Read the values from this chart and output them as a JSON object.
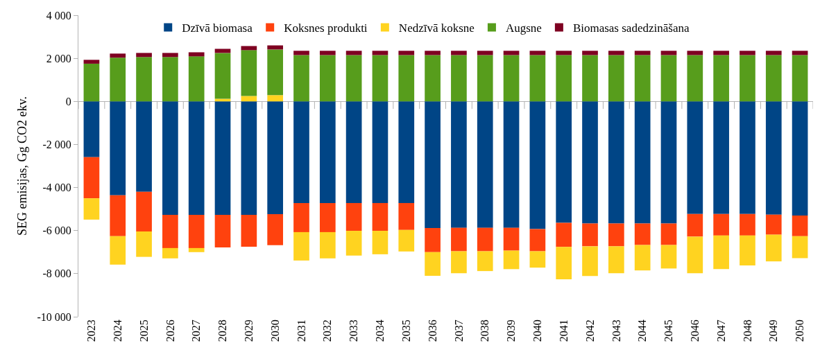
{
  "chart_data": {
    "type": "bar",
    "stacked": true,
    "ylabel": "SEG emisijas, Gg CO2 ekv.",
    "categories": [
      "2023",
      "2024",
      "2025",
      "2026",
      "2027",
      "2028",
      "2029",
      "2030",
      "2031",
      "2032",
      "2033",
      "2034",
      "2035",
      "2036",
      "2037",
      "2038",
      "2039",
      "2040",
      "2041",
      "2042",
      "2043",
      "2044",
      "2045",
      "2046",
      "2047",
      "2048",
      "2049",
      "2050"
    ],
    "series": [
      {
        "name": "Dzīvā biomasa",
        "color": "#004586",
        "values": [
          -2590,
          -4360,
          -4200,
          -5270,
          -5270,
          -5270,
          -5270,
          -5240,
          -4720,
          -4720,
          -4720,
          -4720,
          -4720,
          -5880,
          -5870,
          -5870,
          -5870,
          -5930,
          -5640,
          -5670,
          -5670,
          -5670,
          -5670,
          -5230,
          -5230,
          -5230,
          -5260,
          -5300
        ]
      },
      {
        "name": "Koksnes produkti",
        "color": "#ff420e",
        "values": [
          -1910,
          -1900,
          -1840,
          -1540,
          -1540,
          -1510,
          -1480,
          -1440,
          -1350,
          -1350,
          -1290,
          -1290,
          -1250,
          -1120,
          -1090,
          -1090,
          -1060,
          -1030,
          -1120,
          -1060,
          -1060,
          -1000,
          -1000,
          -1050,
          -1000,
          -1000,
          -930,
          -960
        ]
      },
      {
        "name": "Nedzīvā koksne",
        "color": "#ffd320",
        "values": [
          -990,
          -1320,
          -1180,
          -480,
          -190,
          120,
          250,
          290,
          -1320,
          -1220,
          -1150,
          -1090,
          -1000,
          -1100,
          -1020,
          -920,
          -860,
          -760,
          -1500,
          -1380,
          -1250,
          -1180,
          -1090,
          -1700,
          -1560,
          -1390,
          -1240,
          -1020
        ]
      },
      {
        "name": "Augsne",
        "color": "#579d1c",
        "values": [
          1750,
          2030,
          2060,
          2060,
          2090,
          2130,
          2130,
          2120,
          2150,
          2150,
          2150,
          2150,
          2150,
          2150,
          2150,
          2150,
          2150,
          2150,
          2150,
          2150,
          2150,
          2150,
          2150,
          2150,
          2150,
          2150,
          2150,
          2150
        ]
      },
      {
        "name": "Biomasas sadedzināšana",
        "color": "#7e0021",
        "values": [
          180,
          190,
          190,
          190,
          190,
          190,
          190,
          190,
          200,
          200,
          200,
          200,
          200,
          200,
          200,
          200,
          200,
          200,
          200,
          200,
          200,
          200,
          200,
          200,
          200,
          200,
          200,
          200
        ]
      }
    ],
    "ylim": [
      -10000,
      4000
    ],
    "yticks": [
      {
        "value": -10000,
        "label": "-10 000"
      },
      {
        "value": -8000,
        "label": "-8 000"
      },
      {
        "value": -6000,
        "label": "-6 000"
      },
      {
        "value": -4000,
        "label": "-4 000"
      },
      {
        "value": -2000,
        "label": "-2 000"
      },
      0,
      {
        "value": 2000,
        "label": "2 000"
      },
      {
        "value": 4000,
        "label": "4 000"
      }
    ],
    "legend": "top"
  }
}
